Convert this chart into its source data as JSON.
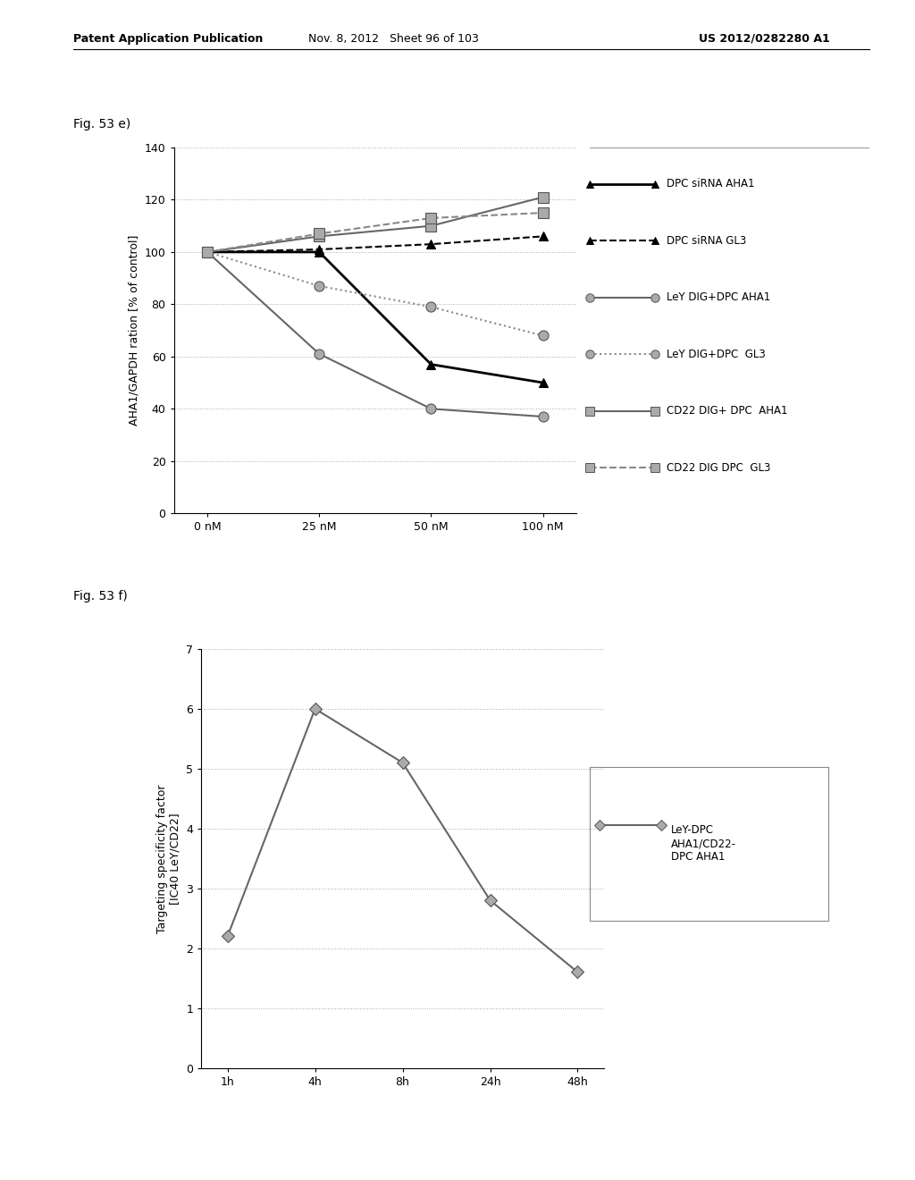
{
  "fig_label_e": "Fig. 53 e)",
  "fig_label_f": "Fig. 53 f)",
  "header_left": "Patent Application Publication",
  "header_mid": "Nov. 8, 2012   Sheet 96 of 103",
  "header_right": "US 2012/0282280 A1",
  "chart_e": {
    "xtick_labels": [
      "0 nM",
      "25 nM",
      "50 nM",
      "100 nM"
    ],
    "ylabel": "AHA1/GAPDH ration [% of control]",
    "ylim": [
      0,
      140
    ],
    "yticks": [
      0,
      20,
      40,
      60,
      80,
      100,
      120,
      140
    ],
    "series": [
      {
        "label": "DPC siRNA AHA1",
        "y": [
          100,
          100,
          57,
          50
        ],
        "color": "#000000",
        "linestyle": "solid",
        "marker": "^",
        "markersize": 7,
        "linewidth": 2.0,
        "mfc": "#000000",
        "mec": "#000000"
      },
      {
        "label": "DPC siRNA GL3",
        "y": [
          100,
          101,
          103,
          106
        ],
        "color": "#000000",
        "linestyle": "dashed",
        "marker": "^",
        "markersize": 7,
        "linewidth": 1.5,
        "mfc": "#000000",
        "mec": "#000000"
      },
      {
        "label": "LeY DIG+DPC AHA1",
        "y": [
          100,
          61,
          40,
          37
        ],
        "color": "#666666",
        "linestyle": "solid",
        "marker": "o",
        "markersize": 8,
        "linewidth": 1.5,
        "mfc": "#aaaaaa",
        "mec": "#555555"
      },
      {
        "label": "LeY DIG+DPC  GL3",
        "y": [
          100,
          87,
          79,
          68
        ],
        "color": "#888888",
        "linestyle": "dotted",
        "marker": "o",
        "markersize": 8,
        "linewidth": 1.5,
        "mfc": "#aaaaaa",
        "mec": "#555555"
      },
      {
        "label": "CD22 DIG+ DPC  AHA1",
        "y": [
          100,
          106,
          110,
          121
        ],
        "color": "#666666",
        "linestyle": "solid",
        "marker": "s",
        "markersize": 8,
        "linewidth": 1.5,
        "mfc": "#aaaaaa",
        "mec": "#555555"
      },
      {
        "label": "CD22 DIG DPC  GL3",
        "y": [
          100,
          107,
          113,
          115
        ],
        "color": "#888888",
        "linestyle": "dashed",
        "marker": "s",
        "markersize": 8,
        "linewidth": 1.5,
        "mfc": "#aaaaaa",
        "mec": "#555555"
      }
    ]
  },
  "chart_f": {
    "x_labels": [
      "1h",
      "4h",
      "8h",
      "24h",
      "48h"
    ],
    "ylabel_line1": "Targeting specificity factor",
    "ylabel_line2": "[IC40 LeY/CD22]",
    "ylim": [
      0,
      7
    ],
    "yticks": [
      0,
      1,
      2,
      3,
      4,
      5,
      6,
      7
    ],
    "series": [
      {
        "label": "LeY-DPC\nAHA1/CD22-\nDPC AHA1",
        "y": [
          2.2,
          6.0,
          5.1,
          2.8,
          1.6
        ],
        "color": "#666666",
        "linestyle": "solid",
        "marker": "D",
        "markersize": 7,
        "linewidth": 1.5,
        "mfc": "#aaaaaa",
        "mec": "#555555"
      }
    ]
  },
  "bg_color": "#ffffff",
  "text_color": "#000000",
  "grid_color": "#aaaaaa",
  "grid_style": "dotted"
}
